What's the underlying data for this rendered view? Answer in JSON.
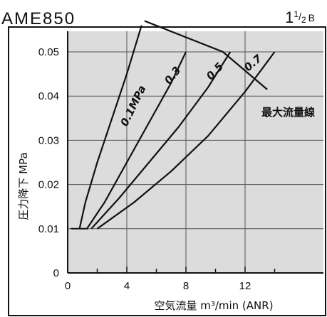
{
  "chart_data": {
    "type": "line",
    "title": "AME850",
    "port_size": {
      "main": "1",
      "num": "1",
      "den": "2",
      "suffix": "B"
    },
    "xlabel": "空気流量  m³/min (ANR)",
    "ylabel": "圧力降下  MPa",
    "xlim": [
      0,
      16
    ],
    "ylim": [
      0,
      0.057
    ],
    "x_ticks": [
      0,
      4,
      8,
      12
    ],
    "y_ticks": [
      0,
      0.01,
      0.02,
      0.03,
      0.04,
      0.05
    ],
    "x_tick_labels": [
      "0",
      "4",
      "8",
      "12"
    ],
    "y_tick_labels": [
      "0",
      "0.01",
      "0.02",
      "0.03",
      "0.04",
      "0.05"
    ],
    "grid": true,
    "series": [
      {
        "name": "0.1MPa",
        "x": [
          0.8,
          1.2,
          2.0,
          3.0,
          4.0,
          5.0
        ],
        "y": [
          0.01,
          0.016,
          0.025,
          0.035,
          0.045,
          0.056
        ]
      },
      {
        "name": "0.3",
        "x": [
          1.3,
          2.5,
          4.0,
          5.5,
          7.0,
          8.0
        ],
        "y": [
          0.01,
          0.016,
          0.025,
          0.034,
          0.043,
          0.05
        ]
      },
      {
        "name": "0.5",
        "x": [
          1.6,
          3.5,
          5.5,
          7.5,
          9.5,
          11.0
        ],
        "y": [
          0.01,
          0.017,
          0.025,
          0.033,
          0.042,
          0.05
        ]
      },
      {
        "name": "0.7",
        "x": [
          2.0,
          4.5,
          7.0,
          9.5,
          12.0,
          14.0
        ],
        "y": [
          0.01,
          0.016,
          0.023,
          0.031,
          0.041,
          0.05
        ]
      }
    ],
    "max_flow_line": {
      "label": "最大流量線",
      "x": [
        5.2,
        10.5,
        13.5
      ],
      "y": [
        0.057,
        0.05,
        0.0415
      ]
    }
  }
}
